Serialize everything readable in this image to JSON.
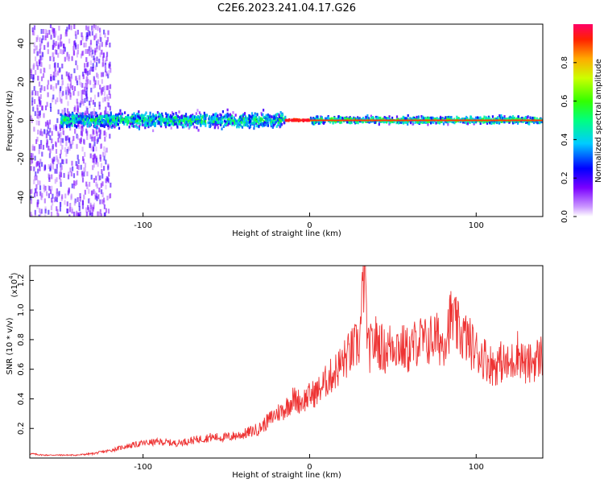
{
  "title": "C2E6.2023.241.04.17.G26",
  "colors": {
    "snr_line": "#ee3333",
    "axis": "#000000",
    "background": "#ffffff"
  },
  "chart_data": [
    {
      "type": "heatmap",
      "xlabel": "Height of straight line (km)",
      "ylabel": "Frequency (Hz)",
      "xlim": [
        -168,
        140
      ],
      "ylim": [
        -50,
        50
      ],
      "xticks": [
        {
          "v": -100,
          "label": "-100"
        },
        {
          "v": 0,
          "label": "0"
        },
        {
          "v": 100,
          "label": "100"
        }
      ],
      "yticks": [
        {
          "v": -40,
          "label": "-40"
        },
        {
          "v": -20,
          "label": "-20"
        },
        {
          "v": 0,
          "label": "0"
        },
        {
          "v": 20,
          "label": "20"
        },
        {
          "v": 40,
          "label": "40"
        }
      ],
      "colorbar": {
        "label": "Normalized spectral amplitude",
        "range": [
          0,
          1
        ],
        "ticks": [
          {
            "v": 0.0,
            "label": "0.0"
          },
          {
            "v": 0.2,
            "label": "0.2"
          },
          {
            "v": 0.4,
            "label": "0.4"
          },
          {
            "v": 0.6,
            "label": "0.6"
          },
          {
            "v": 0.8,
            "label": "0.8"
          }
        ],
        "colormap": "rainbow"
      },
      "description_bands": [
        {
          "x_range": [
            -168,
            -120
          ],
          "freq_spread": 50,
          "amplitude": 0.15
        },
        {
          "x_range": [
            -150,
            -15
          ],
          "freq_spread": 6,
          "amplitude": 0.45
        },
        {
          "x_range": [
            -15,
            0
          ],
          "freq_spread": 1,
          "amplitude": 0.95
        },
        {
          "x_range": [
            0,
            140
          ],
          "freq_spread": 3,
          "amplitude": 0.5
        }
      ]
    },
    {
      "type": "line",
      "xlabel": "Height of straight line (km)",
      "ylabel": "SNR (10 * v/v)",
      "scale_note": "(x10",
      "scale_exp": "4",
      "xlim": [
        -168,
        140
      ],
      "ylim": [
        0,
        1.3
      ],
      "xticks": [
        {
          "v": -100,
          "label": "-100"
        },
        {
          "v": 0,
          "label": "0"
        },
        {
          "v": 100,
          "label": "100"
        }
      ],
      "yticks": [
        {
          "v": 0.2,
          "label": "0.2"
        },
        {
          "v": 0.4,
          "label": "0.4"
        },
        {
          "v": 0.6,
          "label": "0.6"
        },
        {
          "v": 0.8,
          "label": "0.8"
        },
        {
          "v": 1.0,
          "label": "1.0"
        },
        {
          "v": 1.2,
          "label": "1.2"
        }
      ],
      "series": [
        {
          "x": [
            -168,
            -160,
            -150,
            -140,
            -130,
            -120,
            -110,
            -100,
            -90,
            -80,
            -70,
            -60,
            -50,
            -40,
            -30,
            -25,
            -20,
            -15,
            -10,
            -5,
            0,
            5,
            10,
            15,
            20,
            25,
            30,
            33,
            35,
            40,
            45,
            50,
            55,
            60,
            65,
            70,
            75,
            80,
            85,
            90,
            95,
            100,
            105,
            110,
            115,
            120,
            125,
            130,
            135,
            140
          ],
          "y": [
            0.03,
            0.02,
            0.02,
            0.02,
            0.03,
            0.05,
            0.08,
            0.1,
            0.11,
            0.1,
            0.12,
            0.14,
            0.14,
            0.16,
            0.2,
            0.25,
            0.3,
            0.33,
            0.4,
            0.38,
            0.42,
            0.45,
            0.52,
            0.58,
            0.65,
            0.72,
            0.78,
            1.3,
            0.72,
            0.8,
            0.72,
            0.78,
            0.75,
            0.72,
            0.8,
            0.78,
            0.82,
            0.78,
            0.95,
            0.85,
            0.8,
            0.72,
            0.68,
            0.62,
            0.65,
            0.62,
            0.72,
            0.62,
            0.66,
            0.7
          ]
        }
      ]
    }
  ]
}
